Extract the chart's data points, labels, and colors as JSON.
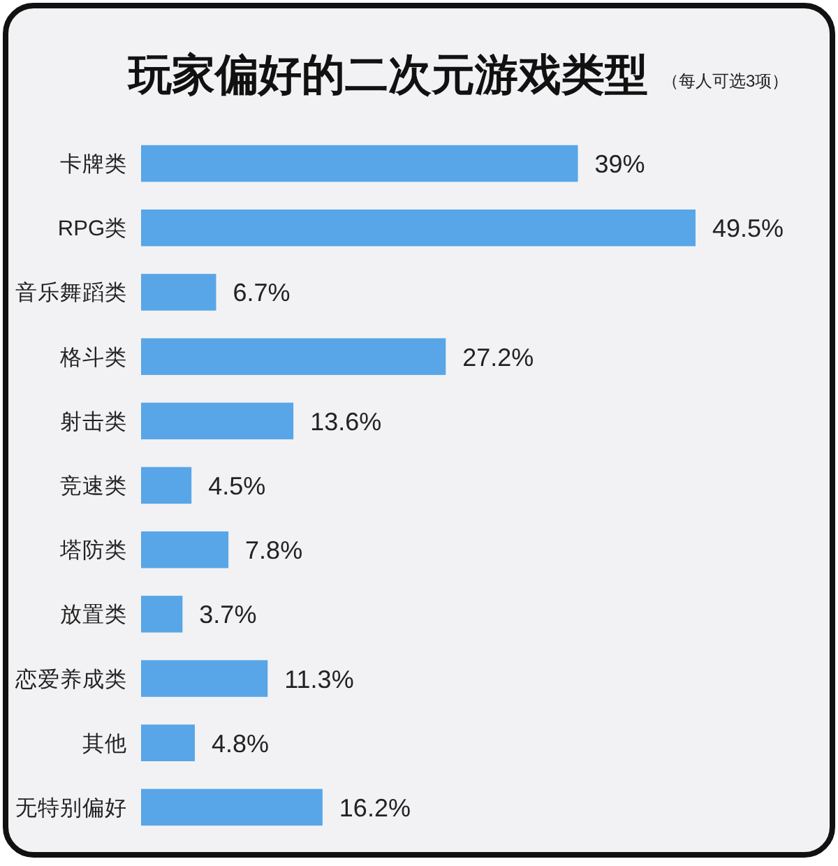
{
  "chart_data": {
    "type": "bar",
    "orientation": "horizontal",
    "title": "玩家偏好的二次元游戏类型",
    "subtitle": "（每人可选3项）",
    "categories": [
      "卡牌类",
      "RPG类",
      "音乐舞蹈类",
      "格斗类",
      "射击类",
      "竞速类",
      "塔防类",
      "放置类",
      "恋爱养成类",
      "其他",
      "无特别偏好"
    ],
    "values": [
      39,
      49.5,
      6.7,
      27.2,
      13.6,
      4.5,
      7.8,
      3.7,
      11.3,
      4.8,
      16.2
    ],
    "value_labels": [
      "39%",
      "49.5%",
      "6.7%",
      "27.2%",
      "13.6%",
      "4.5%",
      "7.8%",
      "3.7%",
      "11.3%",
      "4.8%",
      "16.2%"
    ],
    "color": "#58a6e7"
  }
}
